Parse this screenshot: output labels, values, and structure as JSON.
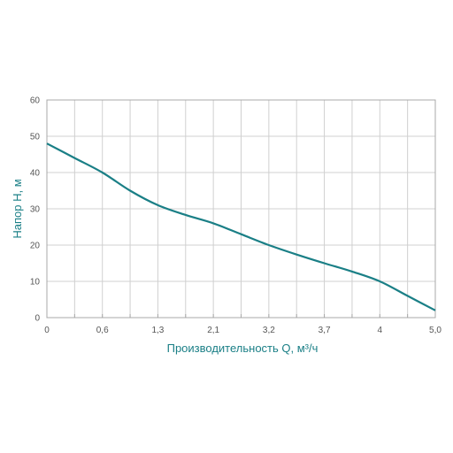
{
  "chart_data": {
    "type": "line",
    "xlabel": "Производительность Q, м³/ч",
    "ylabel": "Напор H, м",
    "x_tick_labels": [
      "0",
      "0,6",
      "1,3",
      "2,1",
      "3,2",
      "3,7",
      "4",
      "5,0"
    ],
    "y_ticks": [
      0,
      10,
      20,
      30,
      40,
      50,
      60
    ],
    "ylim": [
      0,
      60
    ],
    "grid": true,
    "series": [
      {
        "color": "#1a7f86",
        "points": [
          {
            "x_index": 0,
            "y": 48
          },
          {
            "x_index": 0.5,
            "y": 44
          },
          {
            "x_index": 1,
            "y": 40
          },
          {
            "x_index": 1.5,
            "y": 35
          },
          {
            "x_index": 2,
            "y": 31
          },
          {
            "x_index": 2.5,
            "y": 28.3
          },
          {
            "x_index": 3,
            "y": 26
          },
          {
            "x_index": 3.5,
            "y": 23
          },
          {
            "x_index": 4,
            "y": 20
          },
          {
            "x_index": 4.5,
            "y": 17.4
          },
          {
            "x_index": 5,
            "y": 15
          },
          {
            "x_index": 5.5,
            "y": 12.7
          },
          {
            "x_index": 6,
            "y": 10
          },
          {
            "x_index": 6.5,
            "y": 6
          },
          {
            "x_index": 7,
            "y": 2
          }
        ]
      }
    ]
  }
}
